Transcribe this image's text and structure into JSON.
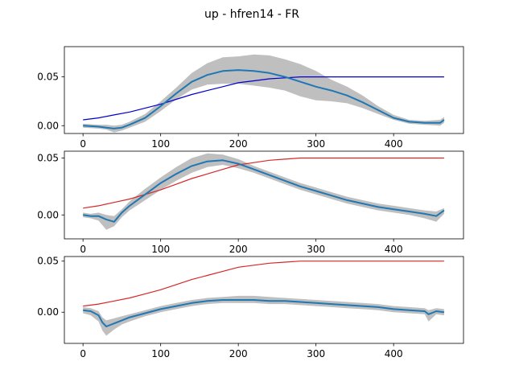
{
  "figure": {
    "suptitle": "up - hfren14 - FR"
  },
  "colors": {
    "mean_line": "#1f77b4",
    "band": "#bfbfbf",
    "reference_panel1": "#0000cc",
    "reference_panel2": "#d62728",
    "reference_panel3": "#d62728"
  },
  "chart_data": [
    {
      "type": "line",
      "title": "",
      "xlim": [
        -24,
        490
      ],
      "ylim": [
        -0.008,
        0.081
      ],
      "xticks": [
        0,
        100,
        200,
        300,
        400
      ],
      "xtick_labels": [
        "0",
        "100",
        "200",
        "300",
        "400"
      ],
      "yticks": [
        0.0,
        0.05
      ],
      "ytick_labels": [
        "0.00",
        "0.05"
      ],
      "grid": false,
      "series": [
        {
          "role": "mean",
          "color": "#1f77b4",
          "x": [
            0,
            20,
            30,
            40,
            50,
            60,
            80,
            100,
            120,
            140,
            160,
            180,
            200,
            220,
            240,
            260,
            280,
            300,
            320,
            340,
            360,
            380,
            400,
            420,
            440,
            460,
            465
          ],
          "y": [
            0.0,
            -0.001,
            -0.002,
            -0.003,
            -0.002,
            0.001,
            0.008,
            0.02,
            0.033,
            0.045,
            0.052,
            0.056,
            0.057,
            0.056,
            0.054,
            0.05,
            0.045,
            0.04,
            0.036,
            0.031,
            0.024,
            0.016,
            0.008,
            0.004,
            0.003,
            0.003,
            0.006
          ]
        },
        {
          "role": "band",
          "color": "#bfbfbf",
          "x": [
            0,
            20,
            30,
            40,
            50,
            60,
            80,
            100,
            120,
            140,
            160,
            180,
            200,
            220,
            240,
            260,
            280,
            300,
            320,
            340,
            360,
            380,
            400,
            420,
            440,
            460,
            465
          ],
          "upper": [
            0.002,
            0.001,
            0.001,
            0.0,
            0.001,
            0.004,
            0.012,
            0.025,
            0.039,
            0.054,
            0.064,
            0.07,
            0.071,
            0.073,
            0.072,
            0.068,
            0.063,
            0.056,
            0.047,
            0.04,
            0.031,
            0.02,
            0.011,
            0.006,
            0.005,
            0.006,
            0.009
          ],
          "lower": [
            -0.002,
            -0.003,
            -0.004,
            -0.007,
            -0.005,
            -0.002,
            0.004,
            0.015,
            0.027,
            0.037,
            0.042,
            0.043,
            0.043,
            0.041,
            0.039,
            0.036,
            0.03,
            0.026,
            0.025,
            0.023,
            0.018,
            0.012,
            0.006,
            0.002,
            0.001,
            0.0,
            0.003
          ]
        },
        {
          "role": "reference",
          "color": "#0000cc",
          "x": [
            0,
            20,
            40,
            60,
            80,
            100,
            120,
            140,
            160,
            180,
            200,
            220,
            240,
            260,
            280,
            300,
            320,
            340,
            360,
            400,
            440,
            465
          ],
          "y": [
            0.006,
            0.008,
            0.011,
            0.014,
            0.018,
            0.022,
            0.027,
            0.032,
            0.036,
            0.04,
            0.044,
            0.046,
            0.048,
            0.049,
            0.05,
            0.05,
            0.05,
            0.05,
            0.05,
            0.05,
            0.05,
            0.05
          ]
        }
      ]
    },
    {
      "type": "line",
      "title": "",
      "xlim": [
        -24,
        490
      ],
      "ylim": [
        -0.021,
        0.056
      ],
      "xticks": [
        0,
        100,
        200,
        300,
        400
      ],
      "xtick_labels": [
        "0",
        "100",
        "200",
        "300",
        "400"
      ],
      "yticks": [
        0.0,
        0.05
      ],
      "ytick_labels": [
        "0.00",
        "0.05"
      ],
      "grid": false,
      "series": [
        {
          "role": "mean",
          "color": "#1f77b4",
          "x": [
            0,
            10,
            20,
            30,
            40,
            50,
            60,
            80,
            100,
            120,
            140,
            160,
            180,
            200,
            220,
            240,
            260,
            280,
            300,
            320,
            340,
            360,
            380,
            400,
            420,
            440,
            455,
            465
          ],
          "y": [
            0.0,
            -0.001,
            -0.001,
            -0.004,
            -0.006,
            0.002,
            0.008,
            0.018,
            0.028,
            0.036,
            0.043,
            0.047,
            0.048,
            0.045,
            0.04,
            0.035,
            0.03,
            0.025,
            0.021,
            0.017,
            0.013,
            0.01,
            0.007,
            0.005,
            0.003,
            0.001,
            -0.001,
            0.004
          ]
        },
        {
          "role": "band",
          "color": "#bfbfbf",
          "x": [
            0,
            10,
            20,
            30,
            40,
            50,
            60,
            80,
            100,
            120,
            140,
            160,
            180,
            200,
            220,
            240,
            260,
            280,
            300,
            320,
            340,
            360,
            380,
            400,
            420,
            440,
            455,
            465
          ],
          "upper": [
            0.002,
            0.001,
            0.002,
            0.0,
            -0.001,
            0.005,
            0.012,
            0.023,
            0.033,
            0.042,
            0.05,
            0.054,
            0.053,
            0.049,
            0.043,
            0.038,
            0.033,
            0.028,
            0.024,
            0.02,
            0.016,
            0.013,
            0.01,
            0.008,
            0.006,
            0.004,
            0.003,
            0.006
          ],
          "lower": [
            -0.002,
            -0.003,
            -0.005,
            -0.013,
            -0.01,
            -0.002,
            0.004,
            0.013,
            0.022,
            0.03,
            0.037,
            0.042,
            0.044,
            0.041,
            0.037,
            0.032,
            0.027,
            0.022,
            0.018,
            0.014,
            0.01,
            0.007,
            0.004,
            0.002,
            0.0,
            -0.003,
            -0.006,
            0.001
          ]
        },
        {
          "role": "reference",
          "color": "#d62728",
          "x": [
            0,
            20,
            40,
            60,
            80,
            100,
            120,
            140,
            160,
            180,
            200,
            220,
            240,
            260,
            280,
            300,
            320,
            340,
            360,
            400,
            440,
            465
          ],
          "y": [
            0.006,
            0.008,
            0.011,
            0.014,
            0.018,
            0.022,
            0.027,
            0.032,
            0.036,
            0.04,
            0.044,
            0.046,
            0.048,
            0.049,
            0.05,
            0.05,
            0.05,
            0.05,
            0.05,
            0.05,
            0.05,
            0.05
          ]
        }
      ]
    },
    {
      "type": "line",
      "title": "",
      "xlim": [
        -24,
        490
      ],
      "ylim": [
        -0.0305,
        0.0545
      ],
      "xticks": [
        0,
        100,
        200,
        300,
        400
      ],
      "xtick_labels": [
        "0",
        "100",
        "200",
        "300",
        "400"
      ],
      "yticks": [
        0.0,
        0.05
      ],
      "ytick_labels": [
        "0.00",
        "0.05"
      ],
      "grid": false,
      "series": [
        {
          "role": "mean",
          "color": "#1f77b4",
          "x": [
            0,
            10,
            20,
            25,
            30,
            40,
            50,
            60,
            80,
            100,
            120,
            140,
            160,
            180,
            200,
            220,
            240,
            260,
            280,
            300,
            320,
            340,
            360,
            380,
            400,
            420,
            440,
            445,
            455,
            465
          ],
          "y": [
            0.002,
            0.001,
            -0.003,
            -0.01,
            -0.014,
            -0.011,
            -0.008,
            -0.005,
            -0.001,
            0.003,
            0.006,
            0.009,
            0.011,
            0.012,
            0.012,
            0.012,
            0.011,
            0.011,
            0.01,
            0.009,
            0.008,
            0.007,
            0.006,
            0.005,
            0.003,
            0.002,
            0.001,
            -0.002,
            0.001,
            0.0
          ]
        },
        {
          "role": "band",
          "color": "#bfbfbf",
          "x": [
            0,
            10,
            20,
            25,
            30,
            40,
            50,
            60,
            80,
            100,
            120,
            140,
            160,
            180,
            200,
            220,
            240,
            260,
            280,
            300,
            320,
            340,
            360,
            380,
            400,
            420,
            440,
            445,
            455,
            465
          ],
          "upper": [
            0.005,
            0.004,
            0.001,
            -0.005,
            -0.008,
            -0.006,
            -0.004,
            -0.002,
            0.002,
            0.006,
            0.009,
            0.012,
            0.014,
            0.015,
            0.016,
            0.016,
            0.015,
            0.014,
            0.013,
            0.012,
            0.011,
            0.01,
            0.009,
            0.008,
            0.006,
            0.005,
            0.004,
            0.002,
            0.004,
            0.003
          ],
          "lower": [
            -0.001,
            -0.003,
            -0.009,
            -0.018,
            -0.023,
            -0.017,
            -0.012,
            -0.009,
            -0.004,
            0.0,
            0.003,
            0.006,
            0.008,
            0.009,
            0.009,
            0.009,
            0.008,
            0.008,
            0.007,
            0.006,
            0.005,
            0.004,
            0.003,
            0.002,
            0.0,
            -0.001,
            -0.002,
            -0.009,
            -0.002,
            -0.003
          ]
        },
        {
          "role": "reference",
          "color": "#d62728",
          "x": [
            0,
            20,
            40,
            60,
            80,
            100,
            120,
            140,
            160,
            180,
            200,
            220,
            240,
            260,
            280,
            300,
            320,
            340,
            360,
            400,
            440,
            465
          ],
          "y": [
            0.006,
            0.008,
            0.011,
            0.014,
            0.018,
            0.022,
            0.027,
            0.032,
            0.036,
            0.04,
            0.044,
            0.046,
            0.048,
            0.049,
            0.05,
            0.05,
            0.05,
            0.05,
            0.05,
            0.05,
            0.05,
            0.05
          ]
        }
      ]
    }
  ]
}
